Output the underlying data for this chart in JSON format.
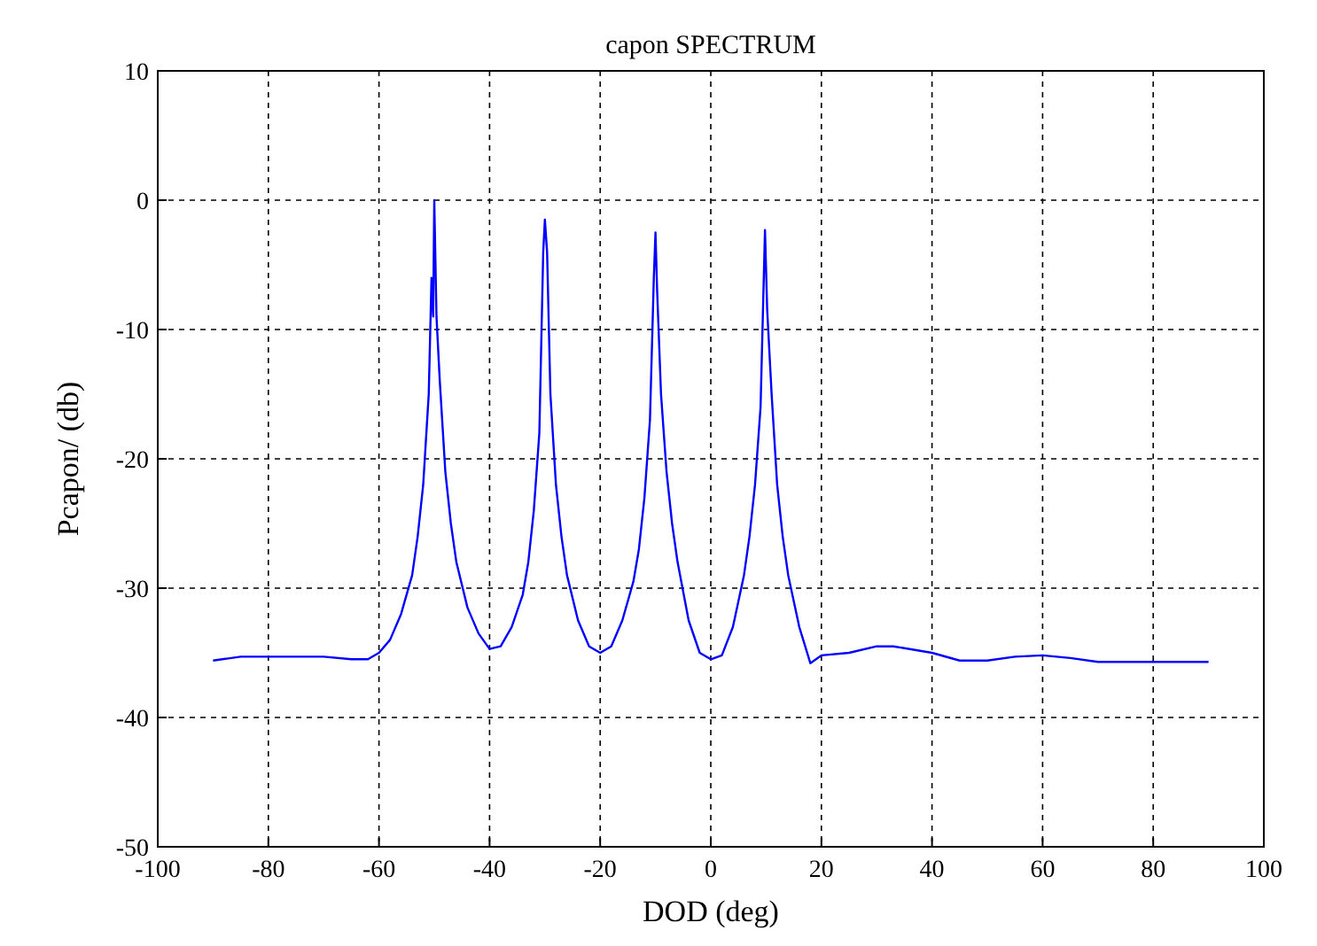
{
  "chart_data": {
    "type": "line",
    "title": "capon SPECTRUM",
    "xlabel": "DOD (deg)",
    "ylabel": "Pcapon/ (db)",
    "x": [
      -90,
      -85,
      -70,
      -65,
      -62,
      -60,
      -58,
      -56,
      -54,
      -53,
      -52,
      -51,
      -50.5,
      -50.2,
      -50,
      -49.6,
      -49,
      -48,
      -47,
      -46,
      -44,
      -42,
      -40,
      -38,
      -36,
      -34,
      -33,
      -32,
      -31,
      -30.3,
      -30,
      -29.6,
      -29,
      -28,
      -27,
      -26,
      -24,
      -22,
      -20,
      -18,
      -16,
      -14,
      -13,
      -12,
      -11,
      -10.3,
      -10,
      -9.7,
      -9,
      -8,
      -7,
      -6,
      -4,
      -2,
      0,
      2,
      4,
      6,
      7,
      8,
      9,
      9.8,
      10.2,
      11,
      12,
      13,
      14,
      16,
      18,
      20,
      25,
      30,
      33,
      40,
      45,
      50,
      55,
      60,
      65,
      70,
      80,
      90
    ],
    "series": [
      {
        "color": "#0000ff",
        "values": [
          -35.6,
          -35.3,
          -35.3,
          -35.5,
          -35.5,
          -35,
          -34,
          -32,
          -29,
          -26,
          -22,
          -15,
          -6,
          -9,
          0,
          -9,
          -14,
          -21,
          -25,
          -28,
          -31.5,
          -33.5,
          -34.7,
          -34.5,
          -33,
          -30.5,
          -28,
          -24,
          -18,
          -4,
          -1.5,
          -4,
          -15,
          -22,
          -26,
          -29,
          -32.5,
          -34.5,
          -35,
          -34.5,
          -32.5,
          -29.5,
          -27,
          -23,
          -17,
          -6,
          -2.5,
          -7,
          -15,
          -21,
          -25,
          -28,
          -32.5,
          -35,
          -35.5,
          -35.2,
          -33,
          -29,
          -26,
          -22,
          -16,
          -2.3,
          -8.5,
          -15,
          -22,
          -26,
          -29,
          -33,
          -35.8,
          -35.2,
          -35,
          -34.5,
          -34.5,
          -35,
          -35.6,
          -35.6,
          -35.3,
          -35.2,
          -35.4,
          -35.7,
          -35.7,
          -35.7
        ]
      }
    ],
    "xlim": [
      -100,
      100
    ],
    "xticks": [
      -100,
      -80,
      -60,
      -40,
      -20,
      0,
      20,
      40,
      60,
      80,
      100
    ],
    "ylim": [
      -50,
      10
    ],
    "yticks": [
      -50,
      -40,
      -30,
      -20,
      -10,
      0,
      10
    ],
    "grid": true,
    "line_style": "solid",
    "marker": "none"
  }
}
